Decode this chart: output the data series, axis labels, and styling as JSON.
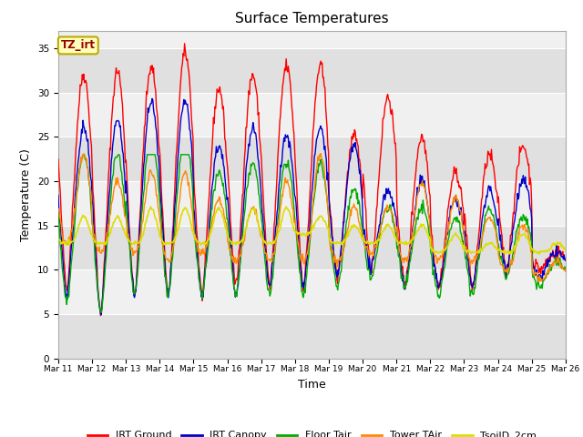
{
  "title": "Surface Temperatures",
  "xlabel": "Time",
  "ylabel": "Temperature (C)",
  "ylim": [
    0,
    37
  ],
  "yticks": [
    0,
    5,
    10,
    15,
    20,
    25,
    30,
    35
  ],
  "fig_bg_color": "#ffffff",
  "plot_bg_color": "#f0f0f0",
  "band_color": "#e0e0e0",
  "annotation_text": "TZ_irt",
  "annotation_color": "#990000",
  "annotation_bg": "#ffffbb",
  "annotation_border": "#bbaa00",
  "series_colors": {
    "IRT Ground": "#ff0000",
    "IRT Canopy": "#0000cc",
    "Floor Tair": "#00aa00",
    "Tower TAir": "#ff8800",
    "TsoilD_2cm": "#dddd00"
  },
  "x_labels": [
    "Mar 11",
    "Mar 12",
    "Mar 13",
    "Mar 14",
    "Mar 15",
    "Mar 16",
    "Mar 17",
    "Mar 18",
    "Mar 19",
    "Mar 20",
    "Mar 21",
    "Mar 22",
    "Mar 23",
    "Mar 24",
    "Mar 25",
    "Mar 26"
  ],
  "seed": 42
}
